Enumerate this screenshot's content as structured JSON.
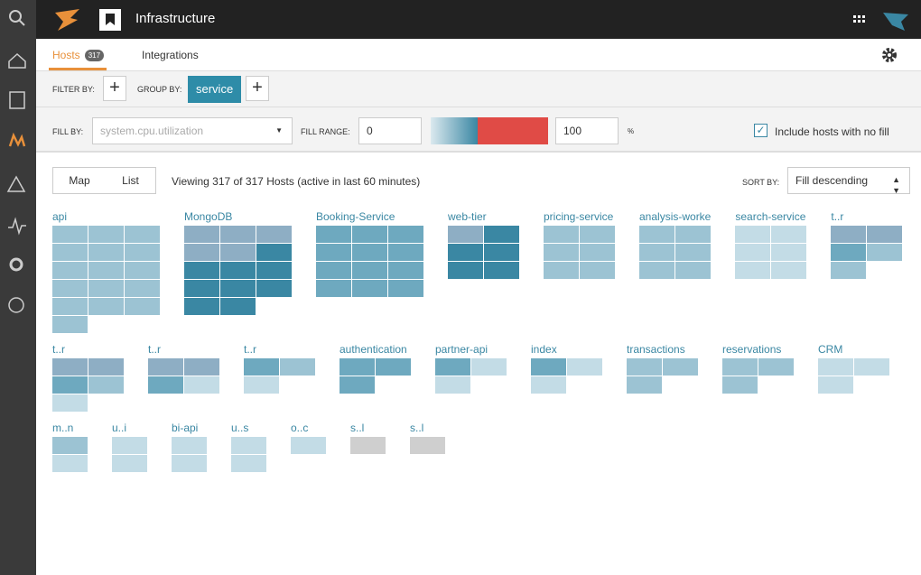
{
  "header": {
    "title": "Infrastructure"
  },
  "tabs": [
    {
      "label": "Hosts",
      "badge": "317"
    },
    {
      "label": "Integrations"
    }
  ],
  "filter": {
    "filter_label": "FILTER BY:",
    "group_label": "GROUP BY:",
    "group_value": "service"
  },
  "fill": {
    "fill_label": "FILL BY:",
    "metric": "system.cpu.utilization",
    "range_label": "FILL RANGE:",
    "min": "0",
    "max": "100",
    "unit": "%",
    "checkbox": "Include hosts with no fill"
  },
  "toolbar": {
    "views": [
      "Map",
      "List"
    ],
    "summary": "Viewing 317 of 317 Hosts (active in last 60 minutes)",
    "sort_label": "SORT BY:",
    "sort_value": "Fill descending"
  },
  "map": {
    "rows": [
      [
        {
          "name": "api",
          "tiles": [
            [
              "#9cc3d3",
              "#9cc3d3",
              "#9cc3d3"
            ],
            [
              "#9cc3d3",
              "#9cc3d3",
              "#9cc3d3"
            ],
            [
              "#9cc3d3",
              "#9cc3d3",
              "#9cc3d3"
            ],
            [
              "#9cc3d3",
              "#9cc3d3",
              "#9cc3d3"
            ],
            [
              "#9cc3d3",
              "#9cc3d3",
              "#9cc3d3"
            ],
            [
              "#9cc3d3"
            ]
          ]
        },
        {
          "name": "MongoDB",
          "tiles": [
            [
              "#8eaec4",
              "#8eaec4",
              "#8eaec4"
            ],
            [
              "#8eaec4",
              "#8eaec4",
              "#3a87a3"
            ],
            [
              "#3a87a3",
              "#3a87a3",
              "#3a87a3"
            ],
            [
              "#3a87a3",
              "#3a87a3",
              "#3a87a3"
            ],
            [
              "#3a87a3",
              "#3a87a3"
            ]
          ]
        },
        {
          "name": "Booking-Service",
          "tiles": [
            [
              "#6ea9bf",
              "#6ea9bf",
              "#6ea9bf"
            ],
            [
              "#6ea9bf",
              "#6ea9bf",
              "#6ea9bf"
            ],
            [
              "#6ea9bf",
              "#6ea9bf",
              "#6ea9bf"
            ],
            [
              "#6ea9bf",
              "#6ea9bf",
              "#6ea9bf"
            ]
          ]
        },
        {
          "name": "web-tier",
          "tiles": [
            [
              "#8eaec4",
              "#3a87a3"
            ],
            [
              "#3a87a3",
              "#3a87a3"
            ],
            [
              "#3a87a3",
              "#3a87a3"
            ]
          ]
        },
        {
          "name": "pricing-service",
          "tiles": [
            [
              "#9cc3d3",
              "#9cc3d3"
            ],
            [
              "#9cc3d3",
              "#9cc3d3"
            ],
            [
              "#9cc3d3",
              "#9cc3d3"
            ]
          ]
        },
        {
          "name": "analysis-worke",
          "tiles": [
            [
              "#9cc3d3",
              "#9cc3d3"
            ],
            [
              "#9cc3d3",
              "#9cc3d3"
            ],
            [
              "#9cc3d3",
              "#9cc3d3"
            ]
          ]
        },
        {
          "name": "search-service",
          "tiles": [
            [
              "#c3dce6",
              "#c3dce6"
            ],
            [
              "#c3dce6",
              "#c3dce6"
            ],
            [
              "#c3dce6",
              "#c3dce6"
            ]
          ]
        },
        {
          "name": "t..r",
          "tiles": [
            [
              "#8eaec4",
              "#8eaec4"
            ],
            [
              "#6ea9bf",
              "#9cc3d3"
            ],
            [
              "#9cc3d3"
            ]
          ]
        }
      ],
      [
        {
          "name": "t..r",
          "tiles": [
            [
              "#8eaec4",
              "#8eaec4"
            ],
            [
              "#6ea9bf",
              "#9cc3d3"
            ],
            [
              "#c3dce6"
            ]
          ]
        },
        {
          "name": "t..r",
          "tiles": [
            [
              "#8eaec4",
              "#8eaec4"
            ],
            [
              "#6ea9bf",
              "#c3dce6"
            ]
          ]
        },
        {
          "name": "t..r",
          "tiles": [
            [
              "#6ea9bf",
              "#9cc3d3"
            ],
            [
              "#c3dce6"
            ]
          ]
        },
        {
          "name": "authentication",
          "tiles": [
            [
              "#6ea9bf",
              "#6ea9bf"
            ],
            [
              "#6ea9bf"
            ]
          ]
        },
        {
          "name": "partner-api",
          "tiles": [
            [
              "#6ea9bf",
              "#c3dce6"
            ],
            [
              "#c3dce6"
            ]
          ]
        },
        {
          "name": "index",
          "tiles": [
            [
              "#6ea9bf",
              "#c3dce6"
            ],
            [
              "#c3dce6"
            ]
          ]
        },
        {
          "name": "transactions",
          "tiles": [
            [
              "#9cc3d3",
              "#9cc3d3"
            ],
            [
              "#9cc3d3"
            ]
          ]
        },
        {
          "name": "reservations",
          "tiles": [
            [
              "#9cc3d3",
              "#9cc3d3"
            ],
            [
              "#9cc3d3"
            ]
          ]
        },
        {
          "name": "CRM",
          "tiles": [
            [
              "#c3dce6",
              "#c3dce6"
            ],
            [
              "#c3dce6"
            ]
          ]
        }
      ],
      [
        {
          "name": "m..n",
          "tiles": [
            [
              "#9cc3d3"
            ],
            [
              "#c3dce6"
            ]
          ]
        },
        {
          "name": "u..i",
          "tiles": [
            [
              "#c3dce6"
            ],
            [
              "#c3dce6"
            ]
          ]
        },
        {
          "name": "bi-api",
          "tiles": [
            [
              "#c3dce6"
            ],
            [
              "#c3dce6"
            ]
          ]
        },
        {
          "name": "u..s",
          "tiles": [
            [
              "#c3dce6"
            ],
            [
              "#c3dce6"
            ]
          ]
        },
        {
          "name": "o..c",
          "tiles": [
            [
              "#c3dce6"
            ]
          ]
        },
        {
          "name": "s..l",
          "tiles": [
            [
              "#cfcfcf"
            ]
          ]
        },
        {
          "name": "s..l",
          "tiles": [
            [
              "#cfcfcf"
            ]
          ]
        }
      ]
    ]
  }
}
